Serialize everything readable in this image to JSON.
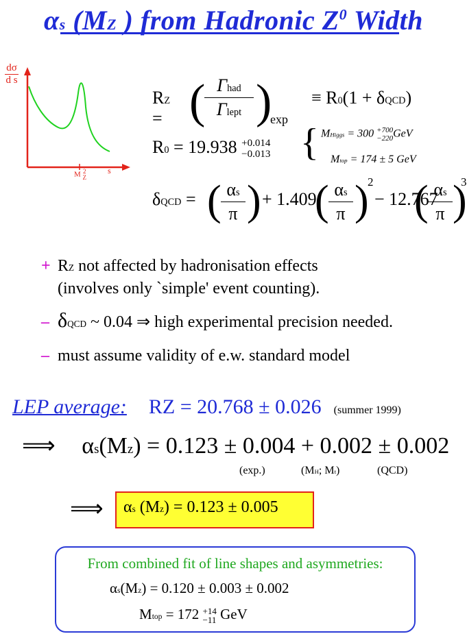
{
  "title": "α_s (M_Z ) from Hadronic Z^0 Width",
  "sketch": {
    "y_label_top": "dσ",
    "y_label_bottom": "d s",
    "x_tick_label": "M",
    "x_tick_sup": "2",
    "x_tick_sub": "Z",
    "x_axis_label": "s"
  },
  "eq_rz": {
    "lhs": "R",
    "lhs_sub": "Z",
    "num": "Γ",
    "num_sub": "had",
    "den": "Γ",
    "den_sub": "lept",
    "exp_sub": "exp",
    "rhs": "≡ R",
    "rhs_sub": "0",
    "rhs_paren": "(1 + δ",
    "rhs_paren_sub": "QCD",
    "rhs_close": ")"
  },
  "eq_r0": {
    "lhs": "R",
    "lhs_sub": "0",
    "value": "= 19.938",
    "up": "+0.014",
    "down": "−0.013"
  },
  "params": {
    "higgs_label": "M",
    "higgs_sub": "Higgs",
    "higgs_value": "= 300",
    "higgs_up": "+700",
    "higgs_down": "−220",
    "higgs_unit": "GeV",
    "top_label": "M",
    "top_sub": "top",
    "top_value": "= 174 ± 5",
    "top_unit": "GeV"
  },
  "eq_dqcd": {
    "lhs": "δ",
    "lhs_sub": "QCD",
    "eq": "=",
    "alpha": "α",
    "alpha_sub": "s",
    "pi": "π",
    "coef2": "+ 1.409",
    "coef3": "− 12.767",
    "pow2": "2",
    "pow3": "3"
  },
  "bullets": [
    {
      "mark": "+",
      "text": "R_Z not affected by hadronisation effects",
      "text_lhs": "R",
      "text_sub": "Z",
      "text_rest": " not affected by hadronisation effects",
      "line2": "(involves only `simple' event counting)."
    },
    {
      "mark": "–",
      "text_delta": "δ",
      "text_sub": "QCD",
      "text_rest": " ~ 0.04  ⇒  high experimental precision needed."
    },
    {
      "mark": "–",
      "text_rest": "must assume validity of e.w. standard model"
    }
  ],
  "lep": {
    "label": "LEP average:",
    "rz": "R",
    "rz_sub": "Z",
    "value": " = 20.768 ± 0.026",
    "note": "(summer 1999)"
  },
  "alpha_line": {
    "arrow": "⟹",
    "lhs": "α",
    "lhs_sub": "s",
    "arg": "(M",
    "arg_sub": "z",
    "arg_close": ")",
    "value": "= 0.123 ± 0.004 + 0.002 ± 0.002",
    "lab_exp": "(exp.)",
    "lab_mh": "(M",
    "lab_mh_sub": "H",
    "lab_mt": "; M",
    "lab_mt_sub": "t",
    "lab_mh_close": ")",
    "lab_qcd": "(QCD)"
  },
  "result": {
    "arrow": "⟹",
    "lhs": "α",
    "lhs_sub": "s",
    "arg": " (M",
    "arg_sub": "z",
    "arg_close": ")",
    "value": " = 0.123 ± 0.005"
  },
  "fit": {
    "heading": "From combined fit of line shapes and asymmetries:",
    "alpha": "α",
    "alpha_sub": "s",
    "alpha_arg": "(M",
    "alpha_arg_sub": "z",
    "alpha_value": ") = 0.120 ± 0.003 ± 0.002",
    "mtop": "M",
    "mtop_sub": "top",
    "mtop_value": "= 172",
    "mtop_up": "+14",
    "mtop_down": "−11",
    "mtop_unit": "GeV"
  },
  "colors": {
    "title": "#1f2bd6",
    "bullet": "#d21bd0",
    "curve": "#1fd21f",
    "axes": "#e2231a",
    "box_fill": "#ffff33",
    "box_border": "#e2231a",
    "fit_border": "#2a3ad6",
    "fit_text": "#1fa81f"
  }
}
